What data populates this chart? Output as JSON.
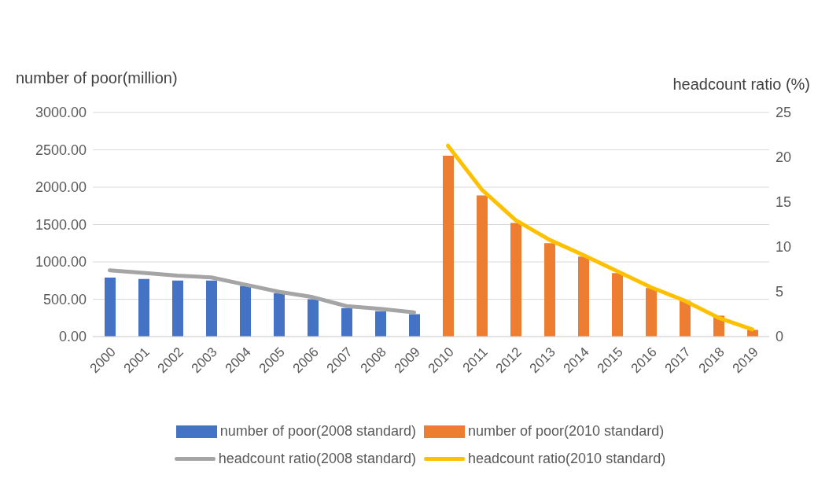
{
  "chart_data": {
    "type": "bar",
    "categories": [
      "2000",
      "2001",
      "2002",
      "2003",
      "2004",
      "2005",
      "2006",
      "2007",
      "2008",
      "2009",
      "2010",
      "2011",
      "2012",
      "2013",
      "2014",
      "2015",
      "2016",
      "2017",
      "2018",
      "2019"
    ],
    "ylabel": "number of poor(million)",
    "y2label": "headcount ratio (%)",
    "series": [
      {
        "name": "number of poor(2008 standard)",
        "color": "#4472c4",
        "values": [
          790,
          770,
          750,
          750,
          680,
          580,
          500,
          380,
          340,
          300,
          null,
          null,
          null,
          null,
          null,
          null,
          null,
          null,
          null,
          null
        ]
      },
      {
        "name": "number of poor(2010 standard)",
        "color": "#ed7d31",
        "values": [
          null,
          null,
          null,
          null,
          null,
          null,
          null,
          null,
          null,
          null,
          2420,
          1890,
          1520,
          1250,
          1070,
          850,
          650,
          480,
          280,
          90
        ]
      },
      {
        "name": "headcount ratio(2008 standard)",
        "type": "line",
        "axis": "y2",
        "color": "#a5a5a5",
        "values": [
          7.4,
          7.1,
          6.8,
          6.6,
          5.8,
          5.0,
          4.4,
          3.4,
          3.1,
          2.7,
          null,
          null,
          null,
          null,
          null,
          null,
          null,
          null,
          null,
          null
        ]
      },
      {
        "name": "headcount ratio(2010 standard)",
        "type": "line",
        "axis": "y2",
        "color": "#ffc000",
        "values": [
          null,
          null,
          null,
          null,
          null,
          null,
          null,
          null,
          null,
          null,
          21.3,
          16.4,
          13.0,
          10.8,
          9.1,
          7.3,
          5.5,
          4.0,
          2.1,
          0.8
        ]
      }
    ],
    "ylim": [
      0,
      3000
    ],
    "yticks": [
      {
        "value": 0,
        "label": "0.00"
      },
      {
        "value": 500,
        "label": "500.00"
      },
      {
        "value": 1000,
        "label": "1000.00"
      },
      {
        "value": 1500,
        "label": "1500.00"
      },
      {
        "value": 2000,
        "label": "2000.00"
      },
      {
        "value": 2500,
        "label": "2500.00"
      },
      {
        "value": 3000,
        "label": "3000.00"
      }
    ],
    "y2lim": [
      0,
      25
    ],
    "y2ticks": [
      0,
      5,
      10,
      15,
      20,
      25
    ],
    "grid": "y",
    "legend": "bottom",
    "marker": "none",
    "line_style": "solid"
  }
}
